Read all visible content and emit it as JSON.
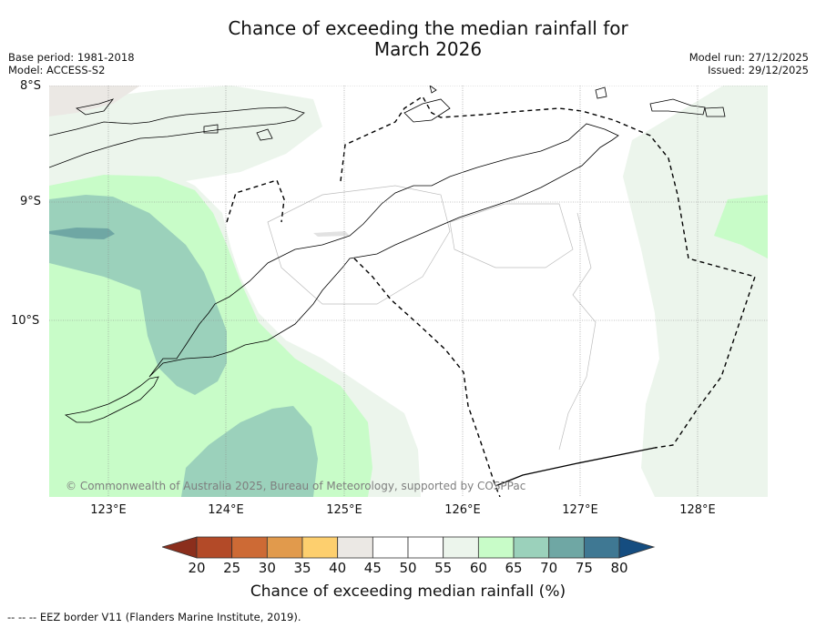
{
  "title": {
    "line1": "Chance of exceeding the median rainfall for",
    "line2": "March 2026"
  },
  "meta": {
    "base_period": "Base period: 1981-2018",
    "model": "Model: ACCESS-S2",
    "model_run": "Model run: 27/12/2025",
    "issued": "Issued: 29/12/2025"
  },
  "map": {
    "lat_labels": [
      "8°S",
      "9°S",
      "10°S"
    ],
    "lon_labels": [
      "123°E",
      "124°E",
      "125°E",
      "126°E",
      "127°E",
      "128°E"
    ],
    "copyright": "© Commonwealth of Australia 2025, Bureau of Meteorology, supported by COSPPac"
  },
  "colorbar": {
    "ticks": [
      "20",
      "25",
      "30",
      "35",
      "40",
      "45",
      "50",
      "55",
      "60",
      "65",
      "70",
      "75",
      "80"
    ],
    "colors": [
      "#8b2e1c",
      "#b34a28",
      "#cd6a35",
      "#e19a4c",
      "#fdcf6e",
      "#ebe8e4",
      "#ffffff",
      "#ffffff",
      "#ecf5ec",
      "#c8fcc8",
      "#9bd1bb",
      "#6fa7a4",
      "#3f7893",
      "#154d80"
    ],
    "label": "Chance of exceeding median rainfall (%)"
  },
  "footer": "--  --  -- EEZ border V11 (Flanders Marine Institute, 2019)."
}
